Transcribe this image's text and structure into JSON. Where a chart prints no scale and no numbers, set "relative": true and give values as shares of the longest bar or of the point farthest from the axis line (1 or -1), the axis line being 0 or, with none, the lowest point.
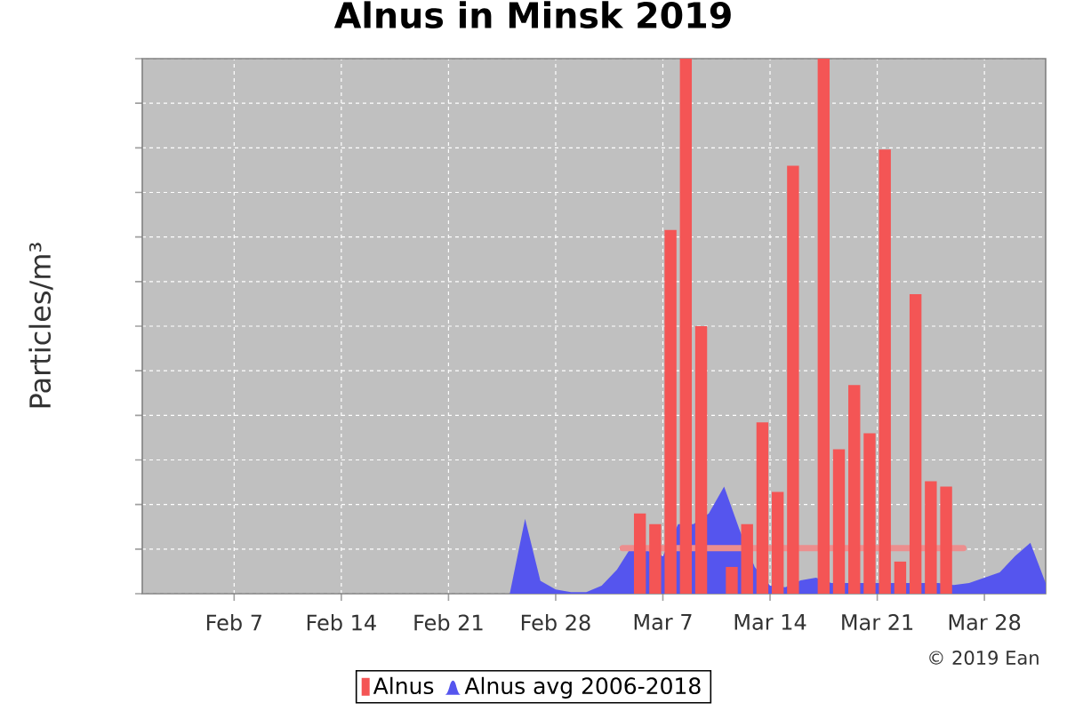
{
  "chart_data": {
    "type": "bar",
    "title": "Alnus in Minsk 2019",
    "ylabel": "Particles/m³",
    "relative": true,
    "xlim": [
      "2019-02-01",
      "2019-04-01"
    ],
    "xticks": [
      {
        "value": "2019-02-07",
        "label": "Feb 7"
      },
      {
        "value": "2019-02-14",
        "label": "Feb 14"
      },
      {
        "value": "2019-02-21",
        "label": "Feb 21"
      },
      {
        "value": "2019-02-28",
        "label": "Feb 28"
      },
      {
        "value": "2019-03-07",
        "label": "Mar 7"
      },
      {
        "value": "2019-03-14",
        "label": "Mar 14"
      },
      {
        "value": "2019-03-21",
        "label": "Mar 21"
      },
      {
        "value": "2019-03-28",
        "label": "Mar 28"
      }
    ],
    "grid": true,
    "legend": "bottom",
    "annotations": [
      "© 2019 Ean"
    ],
    "series": [
      {
        "name": "Alnus",
        "color": "#f45555",
        "x": [
          "2019-03-05T12:00",
          "2019-03-06T12:00",
          "2019-03-07T12:00",
          "2019-03-08T12:00",
          "2019-03-09T12:00",
          "2019-03-10T12:00",
          "2019-03-11T12:00",
          "2019-03-12T12:00",
          "2019-03-13T12:00",
          "2019-03-14T12:00",
          "2019-03-15T12:00",
          "2019-03-16T12:00",
          "2019-03-17T12:00",
          "2019-03-18T12:00",
          "2019-03-19T12:00",
          "2019-03-20T12:00",
          "2019-03-21T12:00",
          "2019-03-22T12:00",
          "2019-03-23T12:00",
          "2019-03-24T12:00",
          "2019-03-25T12:00"
        ],
        "values": [
          0.15,
          0.13,
          0.68,
          1,
          0.5,
          null,
          0.05,
          0.13,
          0.32,
          0.19,
          0.8,
          null,
          1,
          0.27,
          0.39,
          0.3,
          0.83,
          0.06,
          0.56,
          0.21,
          0.2
        ]
      },
      {
        "name": "Alnus avg 2006-2018",
        "type": "area",
        "color": "#5555ee",
        "x": [
          "2019-02-01",
          "2019-02-25",
          "2019-02-26",
          "2019-02-27",
          "2019-02-28",
          "2019-03-01",
          "2019-03-02",
          "2019-03-03",
          "2019-03-04",
          "2019-03-05",
          "2019-03-06",
          "2019-03-07",
          "2019-03-08",
          "2019-03-09",
          "2019-03-10",
          "2019-03-11",
          "2019-03-12",
          "2019-03-13",
          "2019-03-14",
          "2019-03-15",
          "2019-03-16",
          "2019-03-17",
          "2019-03-18",
          "2019-03-19",
          "2019-03-20",
          "2019-03-21",
          "2019-03-22",
          "2019-03-23",
          "2019-03-24",
          "2019-03-25",
          "2019-03-26",
          "2019-03-27",
          "2019-03-28",
          "2019-03-29",
          "2019-03-30",
          "2019-03-31",
          "2019-04-01"
        ],
        "values": [
          0,
          0,
          0.14,
          0.024,
          0.008,
          0.003,
          0.003,
          0.015,
          0.045,
          0.09,
          0.08,
          0.07,
          0.13,
          0.13,
          0.15,
          0.2,
          0.12,
          0.05,
          0.015,
          0.012,
          0.025,
          0.03,
          0.02,
          0.02,
          0.02,
          0.02,
          0.02,
          0.02,
          0.02,
          0.02,
          0.016,
          0.02,
          0.03,
          0.04,
          0.07,
          0.095,
          0.02
        ]
      },
      {
        "type": "line",
        "color": "#ec8e8e",
        "x": [
          "2019-03-04T09:00",
          "2019-03-26T15:00"
        ],
        "values": [
          0.085,
          0.085
        ]
      }
    ]
  }
}
